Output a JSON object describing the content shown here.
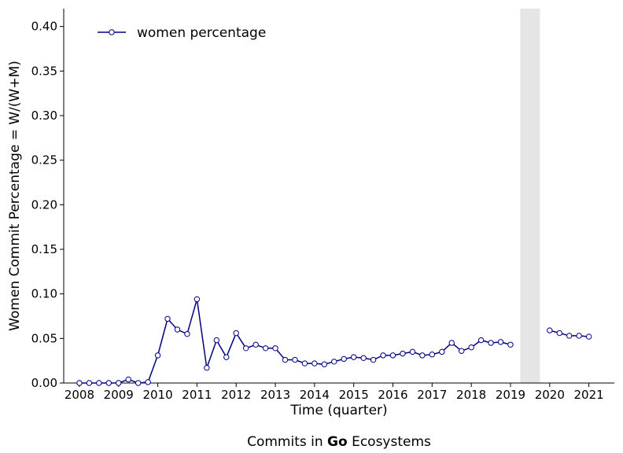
{
  "chart_data": {
    "type": "line",
    "xlabel": "Time (quarter)",
    "ylabel": "Women Commit Percentage = W/(W+M)",
    "caption": {
      "prefix": "Commits in ",
      "bold": "Go",
      "suffix": " Ecosystems"
    },
    "xlim": [
      2007.6,
      2021.65
    ],
    "ylim": [
      0,
      0.42
    ],
    "x_ticks": [
      2008,
      2009,
      2010,
      2011,
      2012,
      2013,
      2014,
      2015,
      2016,
      2017,
      2018,
      2019,
      2020,
      2021
    ],
    "y_ticks": [
      0.0,
      0.05,
      0.1,
      0.15,
      0.2,
      0.25,
      0.3,
      0.35,
      0.4
    ],
    "legend": {
      "position": "top-left"
    },
    "shaded_region": {
      "x_start": 2019.25,
      "x_end": 2019.75,
      "color": "#e5e5e5"
    },
    "series": [
      {
        "name": "women percentage",
        "color": "#000080",
        "marker": "open-circle",
        "segments": [
          [
            [
              2008.0,
              0.0
            ],
            [
              2008.25,
              0.0
            ],
            [
              2008.5,
              0.0
            ],
            [
              2008.75,
              0.0
            ],
            [
              2009.0,
              0.0
            ],
            [
              2009.25,
              0.004
            ],
            [
              2009.5,
              0.0
            ],
            [
              2009.75,
              0.001
            ],
            [
              2010.0,
              0.031
            ],
            [
              2010.25,
              0.072
            ],
            [
              2010.5,
              0.06
            ],
            [
              2010.75,
              0.055
            ],
            [
              2011.0,
              0.094
            ],
            [
              2011.25,
              0.017
            ],
            [
              2011.5,
              0.048
            ],
            [
              2011.75,
              0.029
            ],
            [
              2012.0,
              0.056
            ],
            [
              2012.25,
              0.039
            ],
            [
              2012.5,
              0.043
            ],
            [
              2012.75,
              0.039
            ],
            [
              2013.0,
              0.039
            ],
            [
              2013.25,
              0.026
            ],
            [
              2013.5,
              0.026
            ],
            [
              2013.75,
              0.022
            ],
            [
              2014.0,
              0.022
            ],
            [
              2014.25,
              0.021
            ],
            [
              2014.5,
              0.024
            ],
            [
              2014.75,
              0.027
            ],
            [
              2015.0,
              0.029
            ],
            [
              2015.25,
              0.028
            ],
            [
              2015.5,
              0.026
            ],
            [
              2015.75,
              0.031
            ],
            [
              2016.0,
              0.031
            ],
            [
              2016.25,
              0.033
            ],
            [
              2016.5,
              0.035
            ],
            [
              2016.75,
              0.031
            ],
            [
              2017.0,
              0.032
            ],
            [
              2017.25,
              0.035
            ],
            [
              2017.5,
              0.045
            ],
            [
              2017.75,
              0.036
            ],
            [
              2018.0,
              0.04
            ],
            [
              2018.25,
              0.048
            ],
            [
              2018.5,
              0.045
            ],
            [
              2018.75,
              0.046
            ],
            [
              2019.0,
              0.043
            ]
          ],
          [
            [
              2020.0,
              0.059
            ],
            [
              2020.25,
              0.056
            ],
            [
              2020.5,
              0.053
            ],
            [
              2020.75,
              0.053
            ],
            [
              2021.0,
              0.052
            ]
          ]
        ]
      }
    ]
  }
}
